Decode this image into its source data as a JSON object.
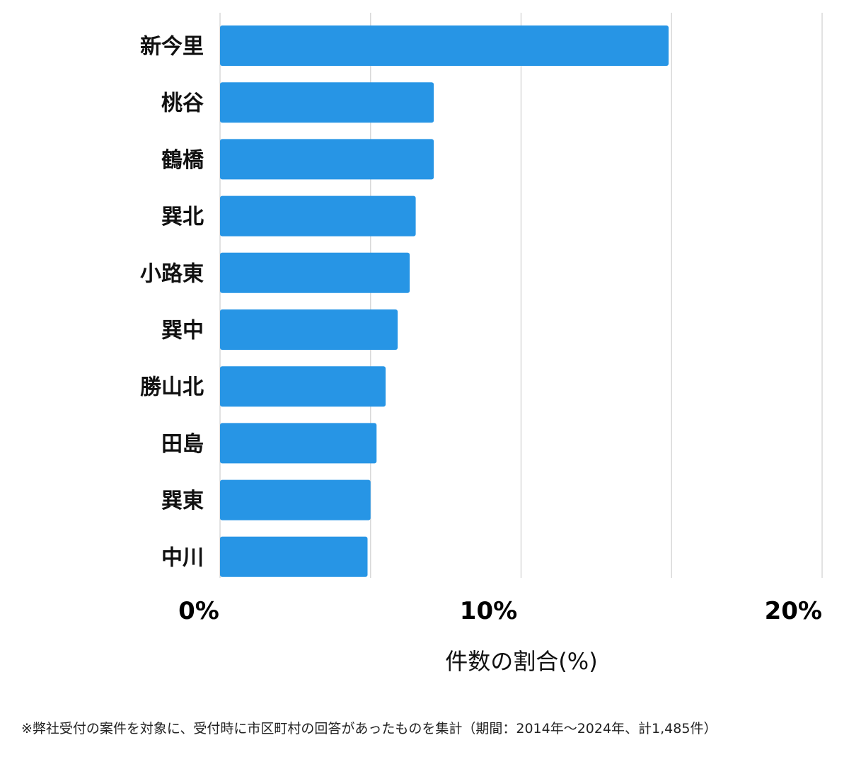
{
  "chart_data": {
    "type": "bar",
    "orientation": "horizontal",
    "categories": [
      "新今里",
      "桃谷",
      "鶴橋",
      "巽北",
      "小路東",
      "巽中",
      "勝山北",
      "田島",
      "巽東",
      "中川"
    ],
    "values": [
      14.9,
      7.1,
      7.1,
      6.5,
      6.3,
      5.9,
      5.5,
      5.2,
      5.0,
      4.9
    ],
    "xlim": [
      0,
      20
    ],
    "xticks": [
      0,
      10,
      20
    ],
    "xtick_labels": [
      "0%",
      "10%",
      "20%"
    ],
    "xlabel": "件数の割合(%)",
    "grid": true,
    "bar_color": "#2795e5",
    "grid_color": "#d9d9d9"
  },
  "footnote": "※弊社受付の案件を対象に、受付時に市区町村の回答があったものを集計（期間：2014年〜2024年、計1,485件）"
}
